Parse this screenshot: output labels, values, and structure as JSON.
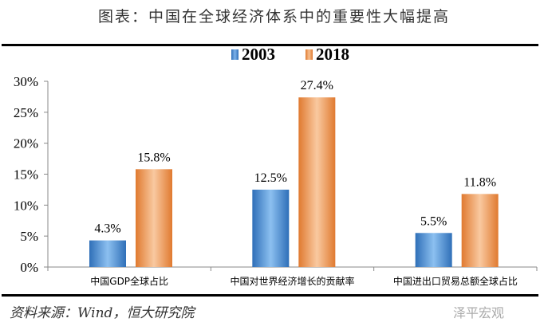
{
  "title": "图表：中国在全球经济体系中的重要性大幅提高",
  "source": "资料来源：Wind，恒大研究院",
  "watermark": "泽平宏观",
  "chart_data": {
    "type": "bar",
    "categories": [
      "中国GDP全球占比",
      "中国对世界经济增长的贡献率",
      "中国进出口贸易总额全球占比"
    ],
    "series": [
      {
        "name": "2003",
        "values": [
          4.3,
          12.5,
          5.5
        ],
        "labels": [
          "4.3%",
          "12.5%",
          "5.5%"
        ],
        "color": "#4a8ed8"
      },
      {
        "name": "2018",
        "values": [
          15.8,
          27.4,
          11.8
        ],
        "labels": [
          "15.8%",
          "27.4%",
          "11.8%"
        ],
        "color": "#f09a5a"
      }
    ],
    "ylim": [
      0,
      30
    ],
    "yticks": [
      "0%",
      "5%",
      "10%",
      "15%",
      "20%",
      "25%",
      "30%"
    ],
    "legend": "top-center"
  }
}
